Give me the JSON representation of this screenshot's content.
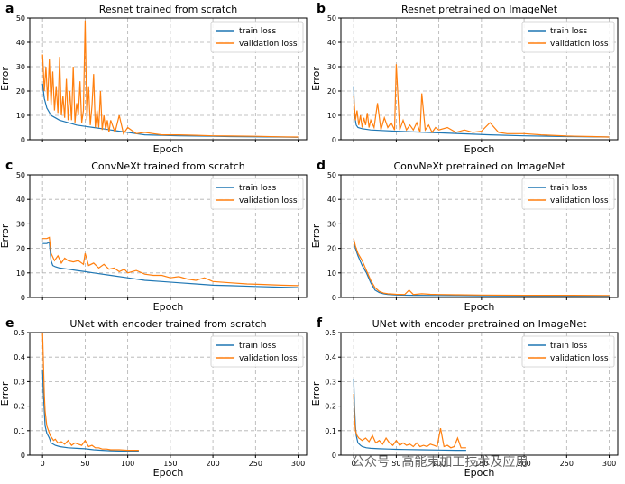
{
  "colors": {
    "train": "#1f77b4",
    "validation": "#ff7f0e"
  },
  "watermark": "公众号 · 高能束加工技术及应用",
  "chart_data": [
    {
      "panel": "a",
      "type": "line",
      "title": "Resnet trained from scratch",
      "xlabel": "Epoch",
      "ylabel": "Error",
      "ylim": [
        0,
        50
      ],
      "yticks": [
        0,
        10,
        20,
        30,
        40,
        50
      ],
      "xlim": [
        -15,
        310
      ],
      "xticks": [],
      "xticklabels": [],
      "grid": true,
      "legend": "top-right",
      "series": [
        {
          "name": "train loss",
          "color": "#1f77b4",
          "x": [
            0,
            2,
            5,
            10,
            15,
            20,
            30,
            40,
            50,
            60,
            70,
            80,
            90,
            100,
            110,
            120,
            140,
            160,
            180,
            200,
            220,
            250,
            280,
            300
          ],
          "y": [
            23,
            17,
            13,
            10,
            9,
            8,
            7,
            6,
            5.5,
            5,
            4.5,
            4,
            3.5,
            3,
            2.5,
            2,
            1.8,
            1.6,
            1.5,
            1.4,
            1.3,
            1.2,
            1.1,
            1.0
          ]
        },
        {
          "name": "validation loss",
          "color": "#ff7f0e",
          "x": [
            0,
            2,
            4,
            6,
            8,
            10,
            12,
            14,
            16,
            18,
            20,
            22,
            24,
            26,
            28,
            30,
            32,
            34,
            36,
            38,
            40,
            42,
            44,
            46,
            48,
            50,
            52,
            54,
            56,
            58,
            60,
            62,
            64,
            66,
            68,
            70,
            72,
            74,
            76,
            78,
            80,
            85,
            90,
            95,
            100,
            110,
            120,
            130,
            140,
            160,
            180,
            200,
            220,
            250,
            280,
            300
          ],
          "y": [
            35,
            20,
            30,
            16,
            33,
            14,
            28,
            12,
            22,
            11,
            34,
            10,
            18,
            9,
            25,
            8,
            20,
            8,
            30,
            7,
            15,
            10,
            24,
            7,
            12,
            49,
            8,
            22,
            6,
            14,
            27,
            5,
            12,
            5,
            20,
            4,
            10,
            4,
            8,
            3,
            8,
            3,
            10,
            2.5,
            5,
            2.5,
            3,
            2.5,
            2,
            2,
            1.8,
            1.6,
            1.5,
            1.4,
            1.2,
            1.1
          ]
        }
      ]
    },
    {
      "panel": "b",
      "type": "line",
      "title": "Resnet pretrained on ImageNet",
      "xlabel": "Epoch",
      "ylabel": "Error",
      "ylim": [
        0,
        50
      ],
      "yticks": [
        0,
        10,
        20,
        30,
        40,
        50
      ],
      "xlim": [
        -15,
        310
      ],
      "xticks": [],
      "xticklabels": [],
      "grid": true,
      "legend": "top-right",
      "series": [
        {
          "name": "train loss",
          "color": "#1f77b4",
          "x": [
            0,
            1,
            3,
            5,
            10,
            20,
            30,
            50,
            70,
            100,
            130,
            160,
            200,
            250,
            300
          ],
          "y": [
            22,
            10,
            6,
            5,
            4.5,
            4,
            3.8,
            3.5,
            3.2,
            2.8,
            2.4,
            2,
            1.6,
            1.3,
            1.1
          ]
        },
        {
          "name": "validation loss",
          "color": "#ff7f0e",
          "x": [
            0,
            2,
            4,
            6,
            8,
            10,
            12,
            14,
            16,
            18,
            20,
            24,
            28,
            32,
            36,
            40,
            44,
            48,
            50,
            54,
            58,
            62,
            66,
            70,
            74,
            78,
            80,
            84,
            88,
            92,
            96,
            100,
            110,
            120,
            130,
            140,
            150,
            160,
            170,
            180,
            200,
            220,
            250,
            280,
            300
          ],
          "y": [
            18,
            8,
            12,
            6,
            10,
            5,
            9,
            6,
            11,
            5,
            8,
            5,
            15,
            4,
            9,
            5,
            7,
            4,
            31,
            4,
            8,
            4,
            6,
            4,
            7,
            3,
            19,
            4,
            6,
            3,
            5,
            4,
            5,
            3,
            4,
            3,
            3.5,
            7,
            3,
            2.5,
            2.5,
            2,
            1.5,
            1.3,
            1.1
          ]
        }
      ]
    },
    {
      "panel": "c",
      "type": "line",
      "title": "ConvNeXt trained from scratch",
      "xlabel": "Epoch",
      "ylabel": "Error",
      "ylim": [
        0,
        50
      ],
      "yticks": [
        0,
        10,
        20,
        30,
        40,
        50
      ],
      "xlim": [
        -15,
        310
      ],
      "xticks": [],
      "xticklabels": [],
      "grid": true,
      "legend": "top-right",
      "series": [
        {
          "name": "train loss",
          "color": "#1f77b4",
          "x": [
            0,
            5,
            8,
            10,
            12,
            15,
            20,
            30,
            40,
            50,
            60,
            80,
            100,
            120,
            140,
            160,
            180,
            200,
            220,
            250,
            280,
            300
          ],
          "y": [
            22,
            22,
            22.5,
            15,
            13,
            12.5,
            12,
            11.5,
            11,
            10.5,
            10,
            9,
            8,
            7,
            6.5,
            6,
            5.5,
            5,
            4.8,
            4.5,
            4.2,
            4.0
          ]
        },
        {
          "name": "validation loss",
          "color": "#ff7f0e",
          "x": [
            0,
            5,
            8,
            10,
            14,
            18,
            22,
            26,
            30,
            36,
            42,
            48,
            50,
            54,
            60,
            66,
            72,
            78,
            84,
            90,
            96,
            100,
            110,
            120,
            130,
            140,
            150,
            160,
            170,
            180,
            190,
            200,
            220,
            240,
            260,
            280,
            300
          ],
          "y": [
            24,
            24,
            24.5,
            18,
            15,
            17,
            14,
            16,
            15,
            14.5,
            15,
            13.5,
            18,
            13,
            14,
            12,
            13.5,
            11.5,
            12,
            10.5,
            11.5,
            10,
            11,
            9.5,
            9,
            9,
            8,
            8.5,
            7.5,
            7,
            8,
            6.5,
            6,
            5.5,
            5.3,
            5,
            4.8
          ]
        }
      ]
    },
    {
      "panel": "d",
      "type": "line",
      "title": "ConvNeXt pretrained on ImageNet",
      "xlabel": "Epoch",
      "ylabel": "Error",
      "ylim": [
        0,
        50
      ],
      "yticks": [
        0,
        10,
        20,
        30,
        40,
        50
      ],
      "xlim": [
        -15,
        310
      ],
      "xticks": [],
      "xticklabels": [],
      "grid": true,
      "legend": "top-right",
      "series": [
        {
          "name": "train loss",
          "color": "#1f77b4",
          "x": [
            0,
            2,
            5,
            10,
            15,
            20,
            25,
            30,
            35,
            40,
            50,
            70,
            100,
            150,
            200,
            250,
            300
          ],
          "y": [
            23,
            20,
            17,
            13,
            10,
            6,
            3,
            2,
            1.5,
            1.2,
            1.0,
            0.9,
            0.8,
            0.7,
            0.6,
            0.55,
            0.5
          ]
        },
        {
          "name": "validation loss",
          "color": "#ff7f0e",
          "x": [
            0,
            2,
            5,
            10,
            15,
            20,
            25,
            30,
            35,
            40,
            50,
            60,
            65,
            70,
            80,
            90,
            100,
            120,
            150,
            200,
            250,
            300
          ],
          "y": [
            24,
            21,
            18,
            15,
            11,
            7,
            4,
            2.5,
            1.8,
            1.5,
            1.3,
            1.2,
            3,
            1.2,
            1.5,
            1.3,
            1.2,
            1.1,
            1.0,
            0.9,
            0.9,
            0.8
          ]
        }
      ]
    },
    {
      "panel": "e",
      "type": "line",
      "title": "UNet with encoder trained from scratch",
      "xlabel": "Epoch",
      "ylabel": "Error",
      "ylim": [
        0,
        0.5
      ],
      "yticks": [
        0,
        0.1,
        0.2,
        0.3,
        0.4,
        0.5
      ],
      "xlim": [
        -15,
        310
      ],
      "xticks": [
        0,
        50,
        100,
        150,
        200,
        250,
        300
      ],
      "xticklabels": [
        "0",
        "50",
        "100",
        "150",
        "200",
        "250",
        "300"
      ],
      "grid": true,
      "legend": "top-right",
      "series": [
        {
          "name": "train loss",
          "color": "#1f77b4",
          "x": [
            0,
            1,
            2,
            3,
            5,
            8,
            10,
            15,
            20,
            30,
            40,
            50,
            60,
            70,
            80,
            90,
            100,
            113
          ],
          "y": [
            0.35,
            0.25,
            0.18,
            0.12,
            0.09,
            0.07,
            0.05,
            0.04,
            0.035,
            0.03,
            0.028,
            0.026,
            0.022,
            0.02,
            0.018,
            0.017,
            0.017,
            0.017
          ]
        },
        {
          "name": "validation loss",
          "color": "#ff7f0e",
          "x": [
            0,
            1,
            2,
            3,
            5,
            7,
            9,
            11,
            13,
            15,
            18,
            22,
            26,
            30,
            34,
            38,
            42,
            46,
            50,
            54,
            58,
            62,
            66,
            70,
            75,
            80,
            90,
            100,
            113
          ],
          "y": [
            0.5,
            0.38,
            0.25,
            0.18,
            0.12,
            0.1,
            0.08,
            0.07,
            0.06,
            0.065,
            0.05,
            0.055,
            0.045,
            0.06,
            0.04,
            0.05,
            0.045,
            0.04,
            0.06,
            0.035,
            0.04,
            0.03,
            0.03,
            0.025,
            0.025,
            0.022,
            0.022,
            0.02,
            0.02
          ]
        }
      ]
    },
    {
      "panel": "f",
      "type": "line",
      "title": "UNet with encoder pretrained on ImageNet",
      "xlabel": "Epoch",
      "ylabel": "Error",
      "ylim": [
        0,
        0.5
      ],
      "yticks": [
        0,
        0.1,
        0.2,
        0.3,
        0.4,
        0.5
      ],
      "xlim": [
        -15,
        310
      ],
      "xticks": [
        0,
        50,
        100,
        150,
        200,
        250,
        300
      ],
      "xticklabels": [
        "0",
        "50",
        "100",
        "150",
        "200",
        "250",
        "300"
      ],
      "grid": true,
      "legend": "top-right",
      "series": [
        {
          "name": "train loss",
          "color": "#1f77b4",
          "x": [
            0,
            1,
            2,
            3,
            5,
            8,
            10,
            15,
            20,
            30,
            40,
            50,
            60,
            80,
            100,
            120,
            132
          ],
          "y": [
            0.31,
            0.2,
            0.12,
            0.08,
            0.05,
            0.04,
            0.035,
            0.03,
            0.028,
            0.026,
            0.025,
            0.024,
            0.023,
            0.022,
            0.021,
            0.02,
            0.02
          ]
        },
        {
          "name": "validation loss",
          "color": "#ff7f0e",
          "x": [
            0,
            1,
            2,
            4,
            6,
            8,
            10,
            14,
            18,
            22,
            26,
            30,
            34,
            38,
            42,
            46,
            50,
            54,
            58,
            62,
            66,
            70,
            74,
            78,
            82,
            86,
            90,
            94,
            98,
            102,
            106,
            110,
            114,
            118,
            122,
            126,
            132
          ],
          "y": [
            0.25,
            0.15,
            0.1,
            0.08,
            0.07,
            0.065,
            0.06,
            0.07,
            0.055,
            0.08,
            0.05,
            0.06,
            0.045,
            0.07,
            0.05,
            0.04,
            0.06,
            0.04,
            0.05,
            0.04,
            0.045,
            0.035,
            0.05,
            0.035,
            0.04,
            0.035,
            0.045,
            0.04,
            0.035,
            0.11,
            0.035,
            0.04,
            0.03,
            0.035,
            0.07,
            0.03,
            0.03
          ]
        }
      ]
    }
  ]
}
